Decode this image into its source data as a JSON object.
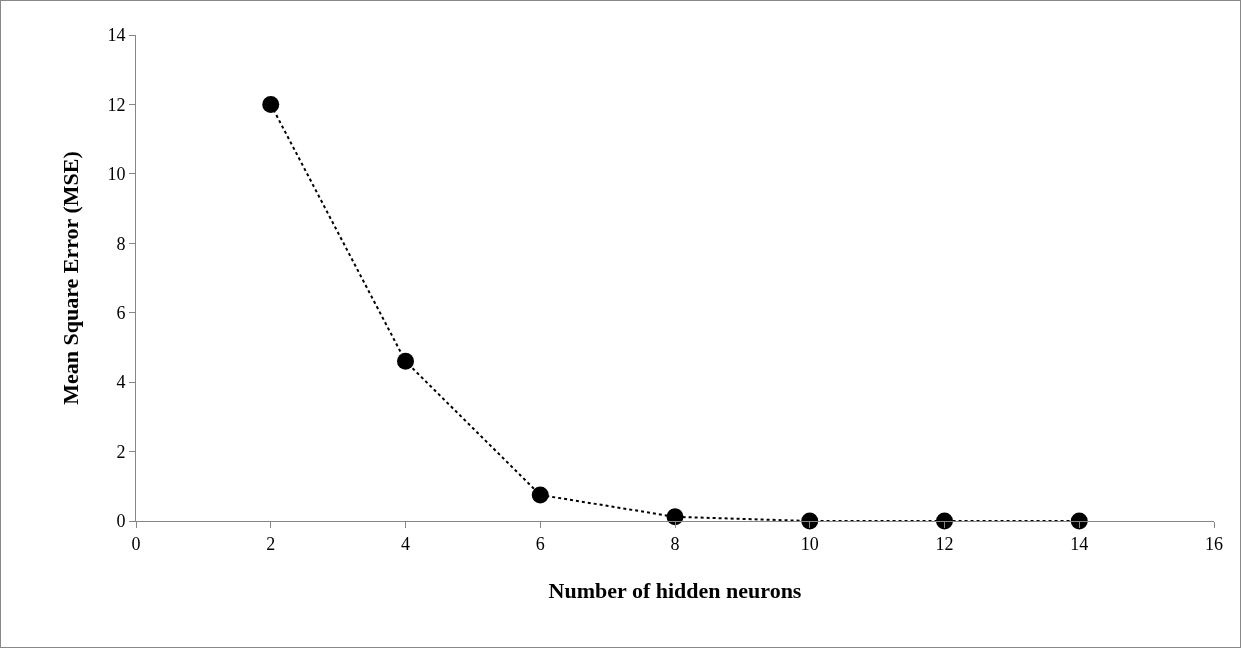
{
  "chart_data": {
    "type": "line",
    "xlabel": "Number of hidden neurons",
    "ylabel": "Mean Square Error (MSE)",
    "x": [
      2,
      4,
      6,
      8,
      10,
      12,
      14
    ],
    "series": [
      {
        "color": "#000000",
        "values": [
          12,
          4.6,
          0.75,
          0.12,
          0,
          0,
          0
        ]
      }
    ],
    "xlim": [
      0,
      16
    ],
    "xticks": [
      0,
      2,
      4,
      6,
      8,
      10,
      12,
      14,
      16
    ],
    "ylim": [
      0,
      14
    ],
    "yticks": [
      0,
      2,
      4,
      6,
      8,
      10,
      12,
      14
    ],
    "grid": false,
    "legend": false,
    "marker": "circle",
    "line_style": "dotted"
  }
}
